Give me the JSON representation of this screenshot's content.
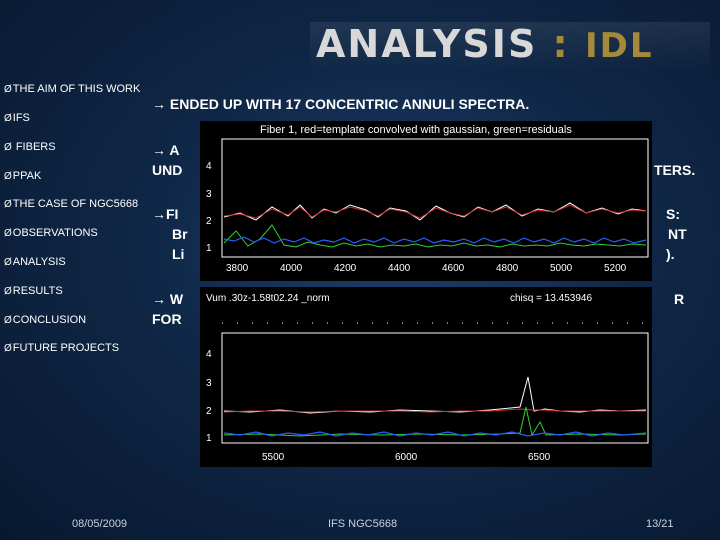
{
  "slide": {
    "title_main": "ANALYSIS",
    "title_sep": ":",
    "title_tag": "IDL",
    "sidebar": [
      "THE AIM OF THIS WORK",
      "IFS",
      " FIBERS",
      "PPAK",
      "THE CASE OF NGC5668",
      "OBSERVATIONS",
      "ANALYSIS",
      "RESULTS",
      "CONCLUSION",
      "FUTURE PROJECTS"
    ],
    "sidebar_arrow": "Ø",
    "body": {
      "line1": "→ ENDED UP WITH 17 CONCENTRIC ANNULI SPECTRA.",
      "line2a": "→ A",
      "line2b": "UND",
      "line2c": "TERS.",
      "line3a": "→FI",
      "line3b": "S:",
      "line3c": "Br",
      "line3d": "NT",
      "line3e": "Li",
      "line3f": ").",
      "line4a": "→ W",
      "line4b": "R",
      "line4c": "FOR"
    },
    "panel_top": {
      "header": "Fiber 1, red=template convolved with gaussian, green=residuals",
      "y_ticks": [
        "1",
        "2",
        "3",
        "4"
      ],
      "x_ticks": [
        "3800",
        "4000",
        "4200",
        "4400",
        "4600",
        "4800",
        "5000",
        "5200"
      ]
    },
    "panel_bottom": {
      "header_left": "Vum .30z-1.58t02.24 _norm",
      "header_right": "chisq = 13.453946",
      "y_ticks": [
        "1",
        "2",
        "3",
        "4"
      ],
      "x_ticks": [
        "5500",
        "6000",
        "6500"
      ]
    },
    "footer": {
      "date": "08/05/2009",
      "center": "IFS NGC5668",
      "page": "13/21"
    },
    "colors": {
      "title_accent": "#a48a3a",
      "trace_white": "#ffffff",
      "trace_red": "#d23030",
      "trace_green": "#2fd02f",
      "trace_blue": "#2a5cff"
    }
  }
}
